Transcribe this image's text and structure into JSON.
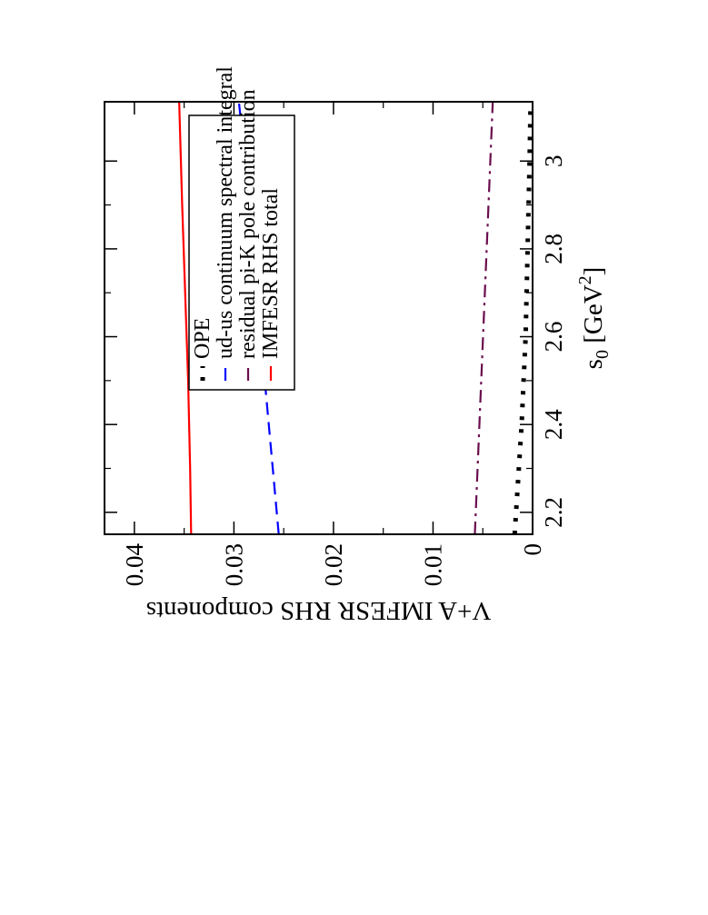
{
  "chart_data": {
    "type": "line",
    "orientation": "rotated-90-ccw",
    "xlabel_main": "s",
    "xlabel_sub": "0",
    "xlabel_unit_open": " [GeV",
    "xlabel_unit_sup": "2",
    "xlabel_unit_close": "]",
    "ylabel": "V+A IMFESR RHS components",
    "xlim": [
      2.15,
      3.135
    ],
    "ylim": [
      0,
      0.043
    ],
    "x_ticks": [
      2.2,
      2.4,
      2.6,
      2.8,
      3.0
    ],
    "x_tick_labels": [
      "2.2",
      "2.4",
      "2.6",
      "2.8",
      "3"
    ],
    "y_ticks": [
      0,
      0.01,
      0.02,
      0.03,
      0.04
    ],
    "y_tick_labels": [
      "0",
      "0.01",
      "0.02",
      "0.03",
      "0.04"
    ],
    "legend_position": "top-right",
    "series": [
      {
        "name": "OPE",
        "color": "#000000",
        "style": "dotted",
        "x": [
          2.15,
          2.4,
          2.6,
          2.8,
          3.0,
          3.135
        ],
        "y": [
          0.0018,
          0.0011,
          0.0007,
          0.0005,
          0.0003,
          0.0002
        ]
      },
      {
        "name": "ud-us continuum spectral integral",
        "color": "#0000ff",
        "style": "dashed",
        "x": [
          2.15,
          2.4,
          2.6,
          2.8,
          3.0,
          3.135
        ],
        "y": [
          0.0255,
          0.0265,
          0.0273,
          0.0281,
          0.0289,
          0.0295
        ]
      },
      {
        "name": "residual pi-K pole contribution",
        "color": "#6a0d4d",
        "style": "dash-dot",
        "x": [
          2.15,
          3.135
        ],
        "y": [
          0.0058,
          0.004
        ]
      },
      {
        "name": "IMFESR RHS total",
        "color": "#ff0000",
        "style": "solid",
        "x": [
          2.15,
          2.3,
          2.5,
          2.7,
          2.9,
          3.135
        ],
        "y": [
          0.0343,
          0.0344,
          0.0346,
          0.0349,
          0.0352,
          0.0355
        ]
      }
    ]
  }
}
